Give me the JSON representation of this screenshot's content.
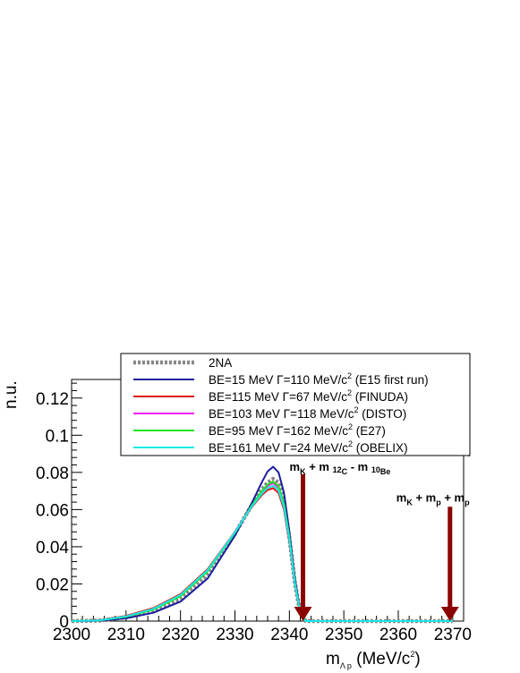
{
  "chart_data": {
    "type": "line",
    "title": "",
    "xlabel": "m",
    "xlabel_sub": "Λ p",
    "xlabel_rest": " (MeV/c",
    "xlabel_sup": "2",
    "xlabel_close": ")",
    "ylabel": "n.u.",
    "xlim": [
      2300,
      2372
    ],
    "ylim": [
      0,
      0.13
    ],
    "x_ticks": [
      2300,
      2310,
      2320,
      2330,
      2340,
      2350,
      2360,
      2370
    ],
    "x_tick_labels": [
      "2300",
      "2310",
      "2320",
      "2330",
      "2340",
      "2350",
      "2360",
      "2370"
    ],
    "y_ticks": [
      0,
      0.02,
      0.04,
      0.06,
      0.08,
      0.1,
      0.12
    ],
    "y_tick_labels": [
      "0",
      "0.02",
      "0.04",
      "0.06",
      "0.08",
      "0.1",
      "0.12"
    ],
    "legend_position": "top-right",
    "series": [
      {
        "name": "2NA",
        "legend_parts": [
          "2NA"
        ],
        "color": "#888888",
        "style": "dotted",
        "x": [
          2300,
          2305,
          2310,
          2315,
          2320,
          2325,
          2330,
          2333,
          2335,
          2336,
          2337,
          2338,
          2339,
          2340,
          2341,
          2342,
          2343,
          2345,
          2350,
          2360,
          2370
        ],
        "y": [
          0,
          0.0003,
          0.002,
          0.0055,
          0.012,
          0.025,
          0.047,
          0.062,
          0.071,
          0.0745,
          0.0765,
          0.0745,
          0.064,
          0.045,
          0.021,
          0.004,
          0,
          0,
          0,
          0,
          0
        ]
      },
      {
        "name": "BE=15 MeV   Γ=110 MeV/c² (E15 first run)",
        "legend_parts": [
          "BE=15 MeV   Γ=110 MeV/c",
          "2",
          " (E15 first run)"
        ],
        "color": "#1c1c9e",
        "style": "solid",
        "x": [
          2300,
          2305,
          2310,
          2315,
          2320,
          2325,
          2330,
          2333,
          2335,
          2336,
          2337,
          2338,
          2339,
          2340,
          2341,
          2342,
          2343,
          2345,
          2350,
          2360,
          2370
        ],
        "y": [
          0,
          0.0002,
          0.0015,
          0.0045,
          0.0105,
          0.023,
          0.046,
          0.063,
          0.075,
          0.0805,
          0.083,
          0.08,
          0.069,
          0.048,
          0.023,
          0.005,
          0,
          0,
          0,
          0,
          0
        ]
      },
      {
        "name": "BE=115 MeV   Γ=67 MeV/c² (FINUDA)",
        "legend_parts": [
          "BE=115 MeV   Γ=67 MeV/c",
          "2",
          " (FINUDA)"
        ],
        "color": "#e01818",
        "style": "solid",
        "x": [
          2300,
          2305,
          2310,
          2315,
          2320,
          2325,
          2330,
          2333,
          2335,
          2336,
          2337,
          2338,
          2339,
          2340,
          2341,
          2342,
          2343,
          2345,
          2350,
          2360,
          2370
        ],
        "y": [
          0,
          0.0005,
          0.0028,
          0.007,
          0.0145,
          0.028,
          0.048,
          0.061,
          0.068,
          0.0705,
          0.0715,
          0.069,
          0.06,
          0.043,
          0.02,
          0.004,
          0,
          0,
          0,
          0,
          0
        ]
      },
      {
        "name": "BE=103 MeV   Γ=118 MeV/c² (DISTO)",
        "legend_parts": [
          "BE=103 MeV   Γ=118 MeV/c",
          "2",
          " (DISTO)"
        ],
        "color": "#f21ef2",
        "style": "solid",
        "x": [
          2300,
          2305,
          2310,
          2315,
          2320,
          2325,
          2330,
          2333,
          2335,
          2336,
          2337,
          2338,
          2339,
          2340,
          2341,
          2342,
          2343,
          2345,
          2350,
          2360,
          2370
        ],
        "y": [
          0,
          0.0004,
          0.0024,
          0.0064,
          0.0137,
          0.0272,
          0.0478,
          0.0618,
          0.0697,
          0.0728,
          0.0742,
          0.0718,
          0.0624,
          0.0447,
          0.0208,
          0.0042,
          0,
          0,
          0,
          0,
          0
        ]
      },
      {
        "name": "BE=95 MeV   Γ=162 MeV/c² (E27)",
        "legend_parts": [
          "BE=95 MeV   Γ=162 MeV/c",
          "2",
          " (E27)"
        ],
        "color": "#1ee61e",
        "style": "solid",
        "x": [
          2300,
          2305,
          2310,
          2315,
          2320,
          2325,
          2330,
          2333,
          2335,
          2336,
          2337,
          2338,
          2339,
          2340,
          2341,
          2342,
          2343,
          2345,
          2350,
          2360,
          2370
        ],
        "y": [
          0,
          0.0004,
          0.0023,
          0.0062,
          0.0134,
          0.0268,
          0.0475,
          0.0618,
          0.0702,
          0.0735,
          0.075,
          0.0726,
          0.0631,
          0.0452,
          0.021,
          0.0043,
          0,
          0,
          0,
          0,
          0
        ]
      },
      {
        "name": "BE=161 MeV   Γ=24 MeV/c² (OBELIX)",
        "legend_parts": [
          "BE=161 MeV   Γ=24 MeV/c",
          "2",
          " (OBELIX)"
        ],
        "color": "#18e8e8",
        "style": "solid",
        "x": [
          2300,
          2305,
          2310,
          2315,
          2320,
          2325,
          2330,
          2333,
          2335,
          2336,
          2337,
          2338,
          2339,
          2340,
          2341,
          2342,
          2343,
          2345,
          2350,
          2360,
          2370
        ],
        "y": [
          0,
          0.0004,
          0.0025,
          0.0066,
          0.014,
          0.0275,
          0.0478,
          0.0613,
          0.0688,
          0.0716,
          0.0728,
          0.0705,
          0.0613,
          0.044,
          0.0205,
          0.0041,
          0,
          0,
          0,
          0,
          0
        ]
      }
    ],
    "annotations": [
      {
        "label_parts": [
          {
            "t": "m",
            "s": "n"
          },
          {
            "t": "K",
            "s": "sub"
          },
          {
            "t": " + m ",
            "s": "n"
          },
          {
            "t": "12",
            "s": "subsup"
          },
          {
            "t": "C",
            "s": "sub"
          },
          {
            "t": " - m ",
            "s": "n"
          },
          {
            "t": "10",
            "s": "subsup"
          },
          {
            "t": "Be",
            "s": "sub"
          }
        ],
        "x": 2342.5,
        "arrow_from_y": 0.079,
        "arrow_to_y": 0,
        "color": "#8b0000"
      },
      {
        "label_parts": [
          {
            "t": "m",
            "s": "n"
          },
          {
            "t": "K",
            "s": "sub"
          },
          {
            "t": " + m",
            "s": "n"
          },
          {
            "t": "p",
            "s": "sub"
          },
          {
            "t": " + m",
            "s": "n"
          },
          {
            "t": "p",
            "s": "sub"
          }
        ],
        "x": 2369.5,
        "arrow_from_y": 0.0615,
        "arrow_to_y": 0,
        "color": "#8b0000"
      }
    ]
  }
}
